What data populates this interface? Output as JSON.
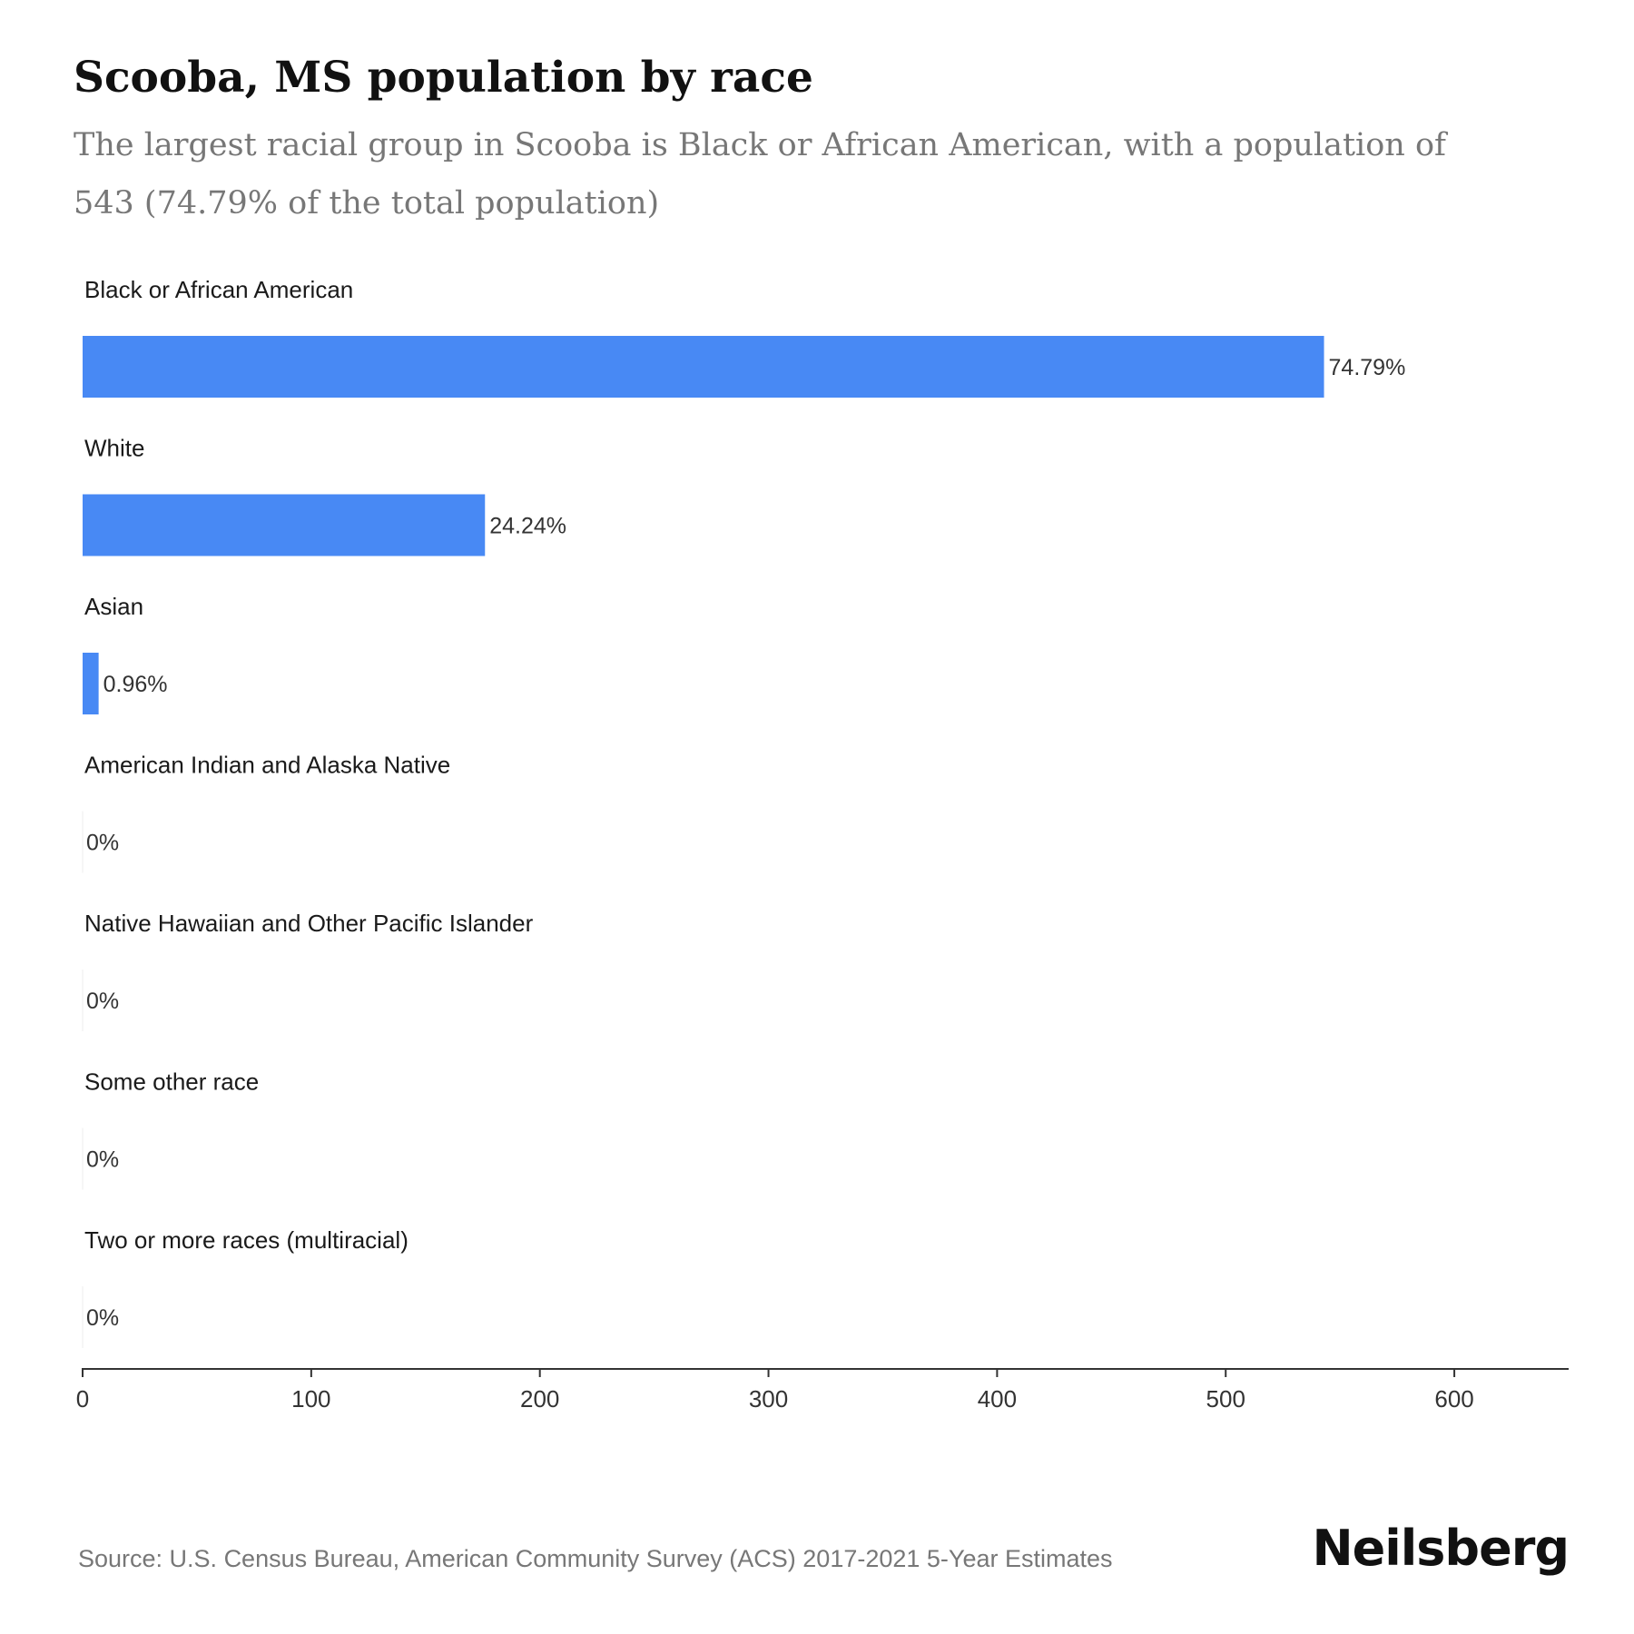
{
  "header": {
    "title": "Scooba, MS population by race",
    "subtitle": "The largest racial group in Scooba is Black or African American, with a population of 543 (74.79% of the total population)"
  },
  "footer": {
    "source": "Source: U.S. Census Bureau, American Community Survey (ACS) 2017-2021 5-Year Estimates",
    "brand": "Neilsberg"
  },
  "colors": {
    "bar": "#4889f4",
    "axis": "#333333"
  },
  "chart_data": {
    "type": "bar",
    "orientation": "horizontal",
    "title": "Scooba, MS population by race",
    "xlabel": "",
    "ylabel": "",
    "xlim": [
      0,
      650
    ],
    "x_ticks": [
      0,
      100,
      200,
      300,
      400,
      500,
      600
    ],
    "categories": [
      "Black or African American",
      "White",
      "Asian",
      "American Indian and Alaska Native",
      "Native Hawaiian and Other Pacific Islander",
      "Some other race",
      "Two or more races (multiracial)"
    ],
    "values": [
      543,
      176,
      7,
      0,
      0,
      0,
      0
    ],
    "value_labels": [
      "74.79%",
      "24.24%",
      "0.96%",
      "0%",
      "0%",
      "0%",
      "0%"
    ],
    "grid": false,
    "legend": "none"
  }
}
